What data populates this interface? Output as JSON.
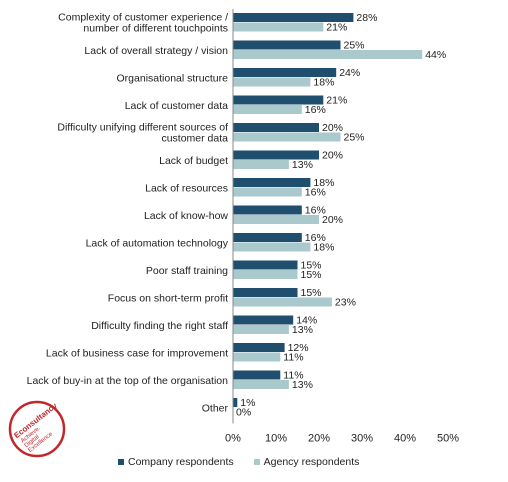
{
  "chart_data": {
    "type": "bar",
    "orientation": "horizontal",
    "categories": [
      [
        "Complexity of customer experience /",
        "number of different touchpoints"
      ],
      [
        "Lack of overall strategy / vision"
      ],
      [
        "Organisational structure"
      ],
      [
        "Lack of customer data"
      ],
      [
        "Difficulty unifying different sources of",
        "customer data"
      ],
      [
        "Lack of budget"
      ],
      [
        "Lack of resources"
      ],
      [
        "Lack of know-how"
      ],
      [
        "Lack of automation technology"
      ],
      [
        "Poor staff training"
      ],
      [
        "Focus on short-term profit"
      ],
      [
        "Difficulty finding the right staff"
      ],
      [
        "Lack of business case for improvement"
      ],
      [
        "Lack of buy-in at the top of the organisation"
      ],
      [
        "Other"
      ]
    ],
    "series": [
      {
        "name": "Company respondents",
        "color": "#1f4e6e",
        "values": [
          28,
          25,
          24,
          21,
          20,
          20,
          18,
          16,
          16,
          15,
          15,
          14,
          12,
          11,
          1
        ]
      },
      {
        "name": "Agency respondents",
        "color": "#a9c9cc",
        "values": [
          21,
          44,
          18,
          16,
          25,
          13,
          16,
          20,
          18,
          15,
          23,
          13,
          11,
          13,
          0
        ]
      }
    ],
    "value_labels": [
      [
        "28%",
        "25%",
        "24%",
        "21%",
        "20%",
        "20%",
        "18%",
        "16%",
        "16%",
        "15%",
        "15%",
        "14%",
        "12%",
        "11%",
        "1%"
      ],
      [
        "21%",
        "44%",
        "18%",
        "16%",
        "25%",
        "13%",
        "16%",
        "20%",
        "18%",
        "15%",
        "23%",
        "13%",
        "11%",
        "13%",
        "0%"
      ]
    ],
    "xlim": [
      0,
      50
    ],
    "xticks": [
      "0%",
      "10%",
      "20%",
      "30%",
      "40%",
      "50%"
    ],
    "legend_position": "bottom",
    "grid": false
  },
  "logo": {
    "lines": [
      "Econsultancy",
      "Achieve.",
      "Digital",
      "Excellence"
    ],
    "color": "#c0282d"
  }
}
